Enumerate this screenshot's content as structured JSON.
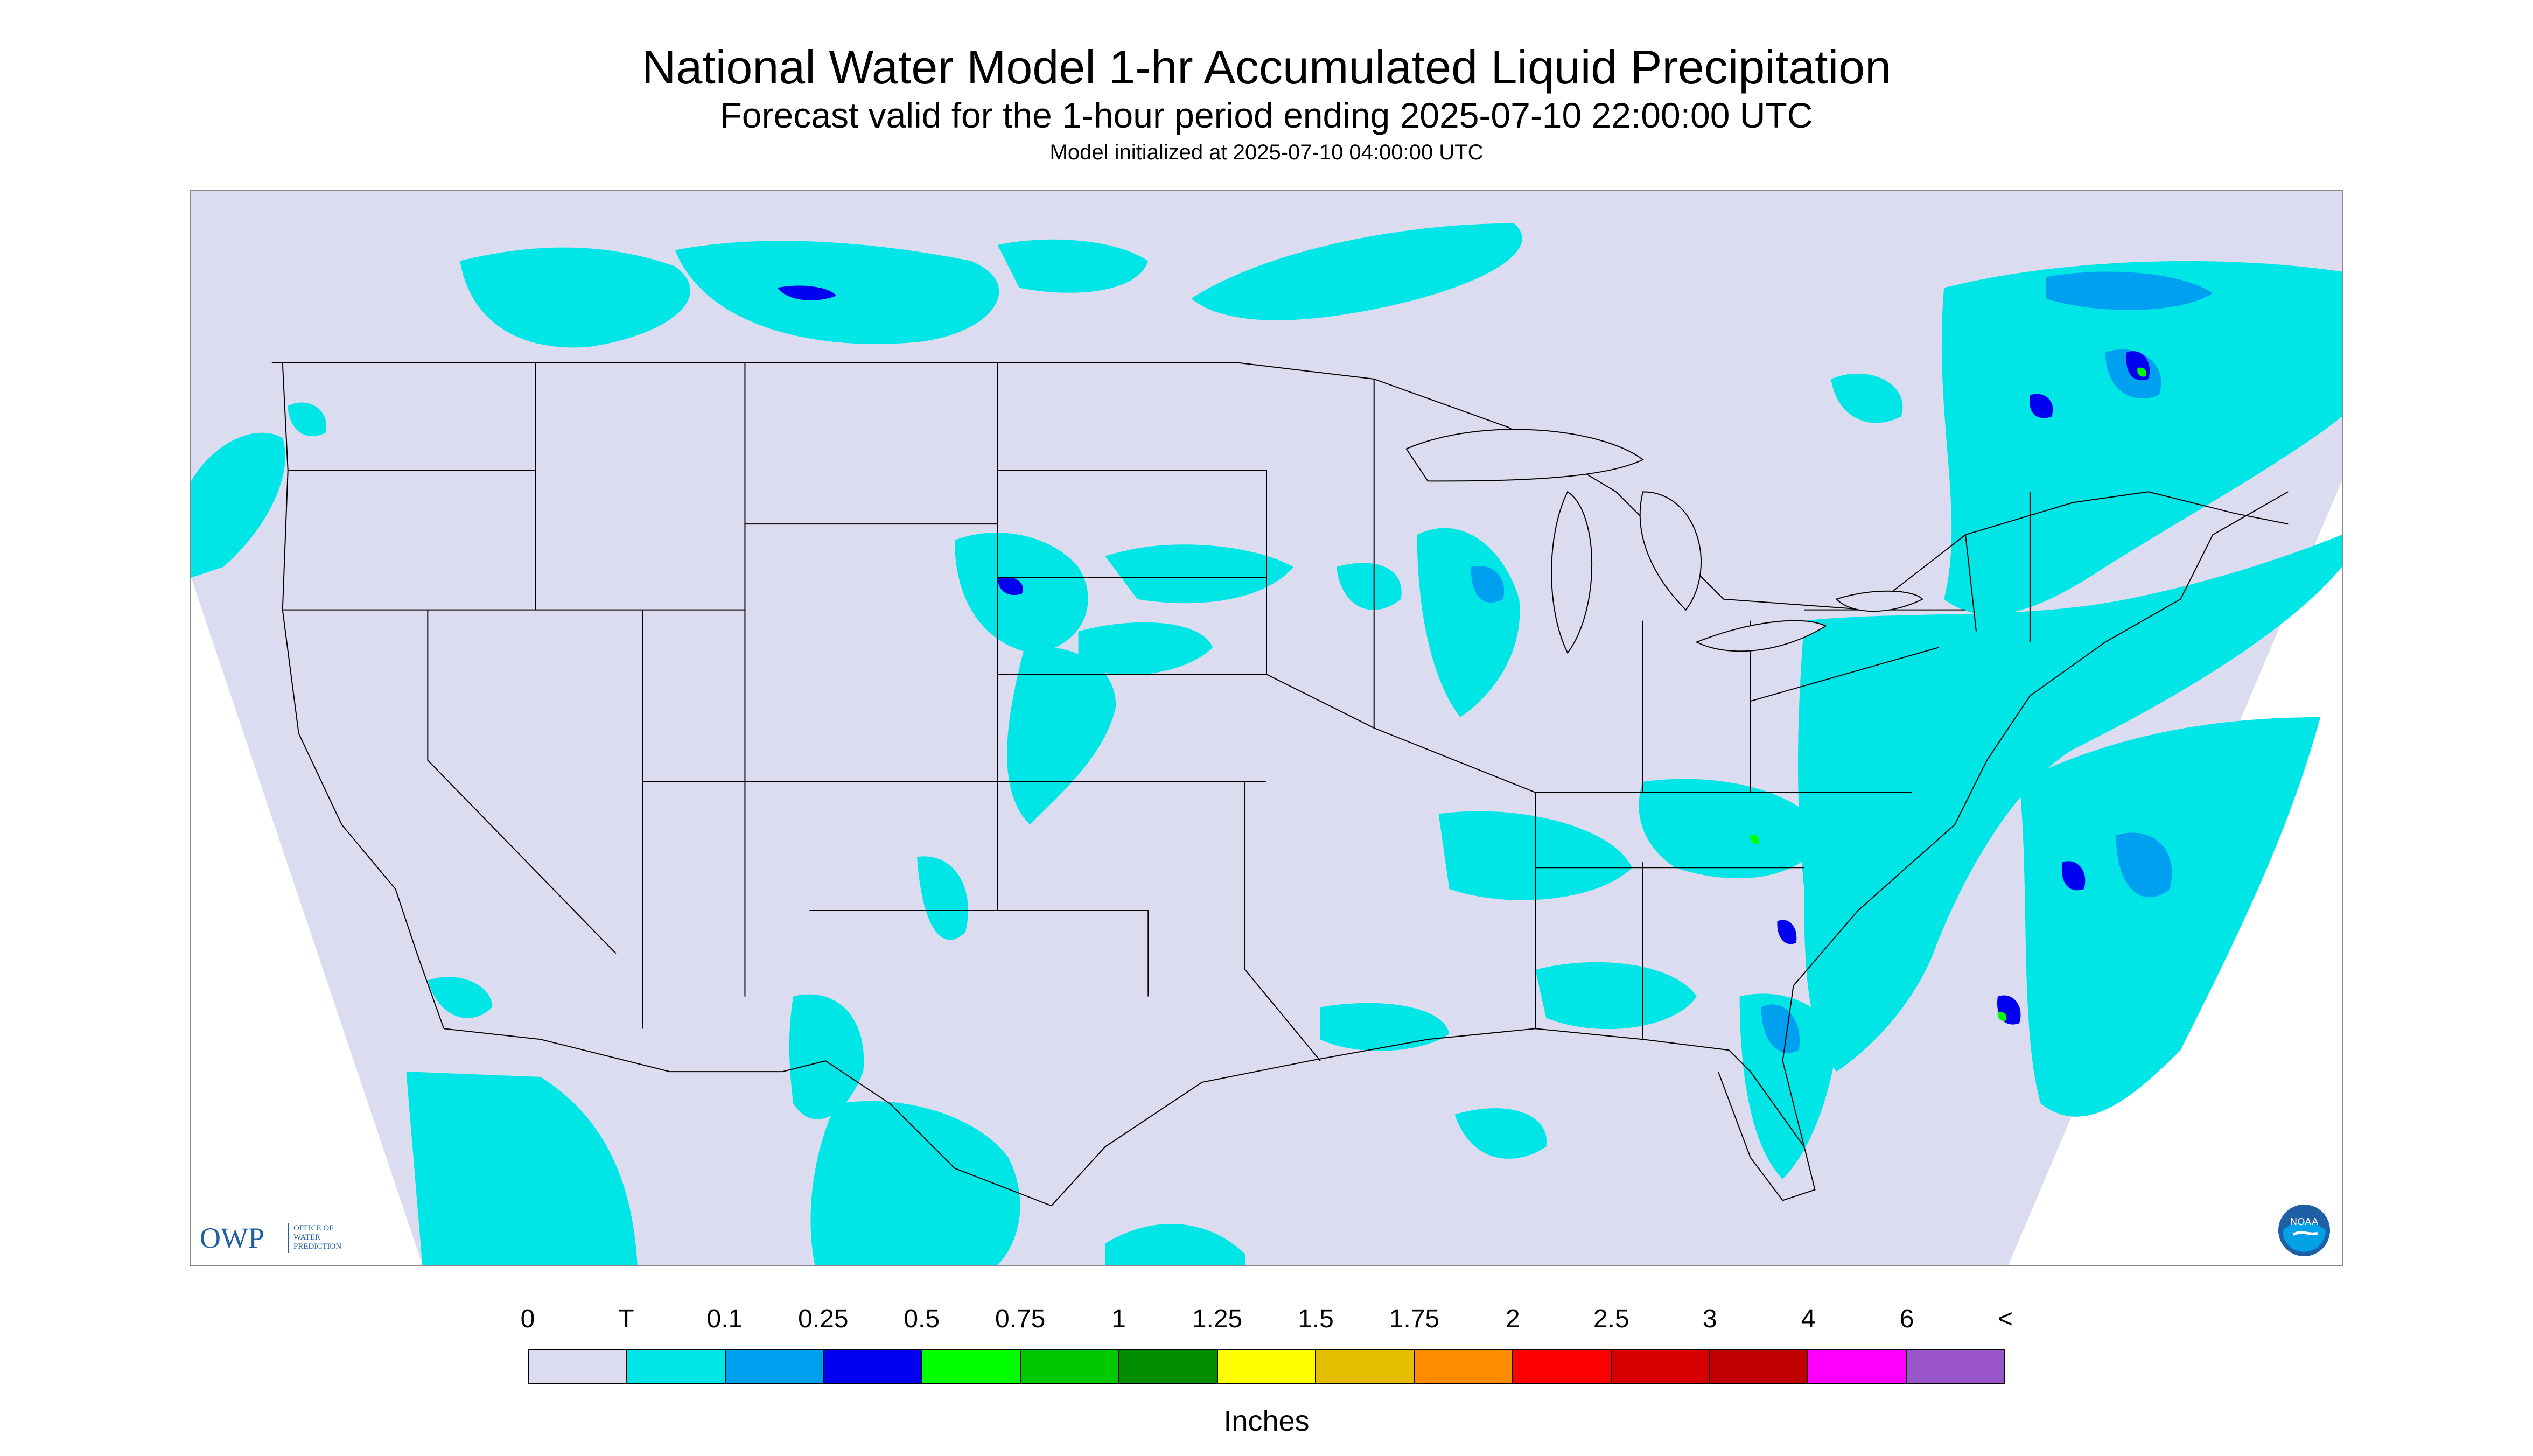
{
  "header": {
    "title": "National Water Model 1-hr Accumulated Liquid Precipitation",
    "subtitle": "Forecast valid for the 1-hour period ending 2025-07-10 22:00:00 UTC",
    "init_text": "Model initialized at 2025-07-10 04:00:00 UTC"
  },
  "logos": {
    "owp_text": "OWP",
    "owp_sub": "OFFICE OF\nWATER\nPREDICTION",
    "noaa_text": "NOAA"
  },
  "legend": {
    "tick_labels": [
      "0",
      "T",
      "0.1",
      "0.25",
      "0.5",
      "0.75",
      "1",
      "1.25",
      "1.5",
      "1.75",
      "2",
      "2.5",
      "3",
      "4",
      "6",
      "<"
    ],
    "colors": [
      "#dcdcf0",
      "#00e6e6",
      "#00a0f0",
      "#0000f0",
      "#00ff00",
      "#00c800",
      "#008c00",
      "#ffff00",
      "#e6be00",
      "#ff8c00",
      "#ff0000",
      "#d70000",
      "#c00000",
      "#ff00ff",
      "#9955c9"
    ],
    "units": "Inches"
  },
  "map": {
    "colors": {
      "domain": "#dcdcf0",
      "outside": "#ffffff",
      "trace": "#00e6e6",
      "light": "#00a0f0",
      "moderate": "#0000f0",
      "heavy": "#00ff00",
      "borders": "#000000"
    }
  }
}
